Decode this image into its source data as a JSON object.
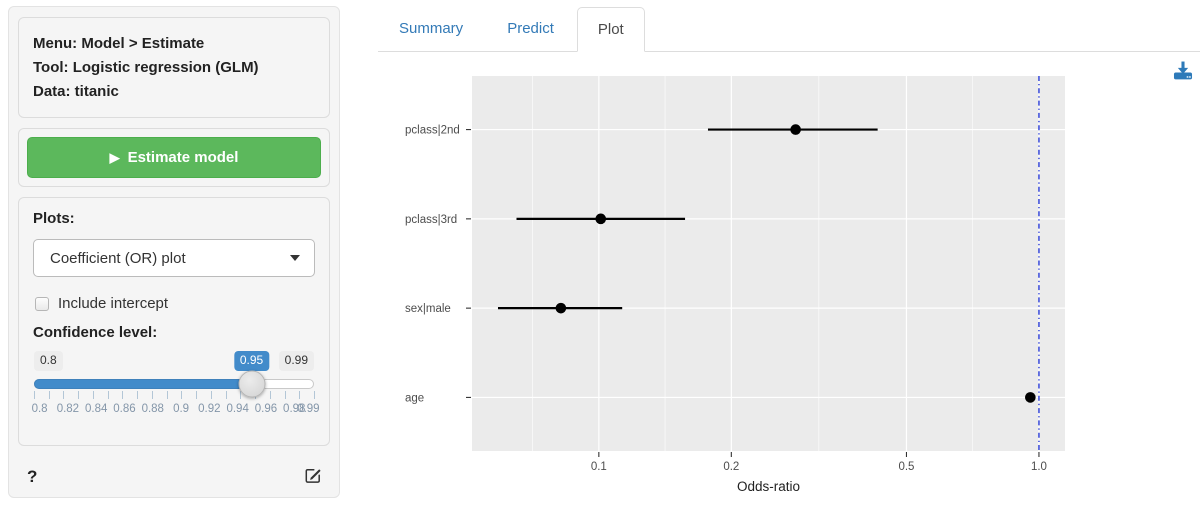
{
  "sidebar": {
    "info": {
      "menu": "Menu: Model > Estimate",
      "tool": "Tool: Logistic regression (GLM)",
      "data": "Data: titanic"
    },
    "estimate_button": "Estimate model",
    "plots_label": "Plots:",
    "plot_select": {
      "value": "Coefficient (OR) plot"
    },
    "include_intercept_label": "Include intercept",
    "include_intercept_checked": false,
    "confidence": {
      "label": "Confidence level:",
      "min": 0.8,
      "max": 0.99,
      "value": 0.95,
      "min_label": "0.8",
      "value_label": "0.95",
      "max_label": "0.99",
      "scale_labels": [
        "0.8",
        "0.82",
        "0.84",
        "0.86",
        "0.88",
        "0.9",
        "0.92",
        "0.94",
        "0.96",
        "0.98",
        "0.99"
      ]
    },
    "help_label": "?"
  },
  "tabs": [
    {
      "label": "Summary",
      "active": false
    },
    {
      "label": "Predict",
      "active": false
    },
    {
      "label": "Plot",
      "active": true
    }
  ],
  "icons": {
    "play": "▶"
  },
  "colors": {
    "accent_blue": "#428bca",
    "link_blue": "#337ab7",
    "success_green": "#5cb85c",
    "success_border": "#4cae4c",
    "panel_bg": "#ebebeb",
    "grid_white": "#ffffff",
    "ref_line_blue": "#2b3cd9",
    "axis_text": "#4d4d4d",
    "tick_color": "#333333",
    "point_black": "#000000"
  },
  "chart_data": {
    "type": "scatter",
    "subtype": "coefficient-errorbar-horizontal",
    "title": "",
    "xlabel": "Odds-ratio",
    "ylabel": "",
    "x_scale": "log10",
    "x_domain": [
      0.0515,
      1.146
    ],
    "x_ticks": [
      0.1,
      0.2,
      0.5,
      1.0
    ],
    "x_tick_labels": [
      "0.1",
      "0.2",
      "0.5",
      "1.0"
    ],
    "x_minor_gridlines": [
      0.0707,
      0.1414,
      0.3162,
      0.7071
    ],
    "categories": [
      "pclass|2nd",
      "pclass|3rd",
      "sex|male",
      "age"
    ],
    "points": [
      {
        "label": "pclass|2nd",
        "or": 0.28,
        "ci_low": 0.177,
        "ci_high": 0.43
      },
      {
        "label": "pclass|3rd",
        "or": 0.101,
        "ci_low": 0.065,
        "ci_high": 0.157
      },
      {
        "label": "sex|male",
        "or": 0.082,
        "ci_low": 0.059,
        "ci_high": 0.113
      },
      {
        "label": "age",
        "or": 0.956,
        "ci_low": 0.948,
        "ci_high": 0.973
      }
    ],
    "reference_line": {
      "x": 1.0,
      "style": "dotdash",
      "color": "#2b3cd9"
    },
    "confidence_level": 0.95,
    "grid": true,
    "legend": false
  }
}
